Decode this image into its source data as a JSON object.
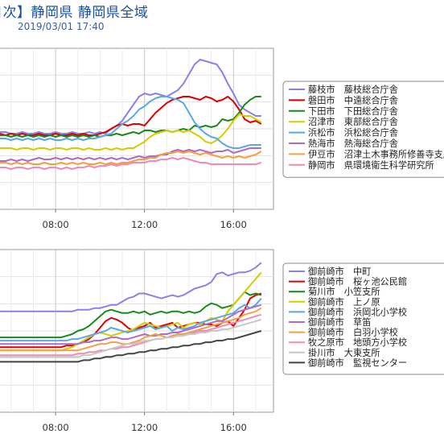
{
  "header": {
    "title": "日次】静岡県 静岡県全域",
    "timestamp": "2019/03/01 17:40"
  },
  "chart_data": [
    {
      "type": "line",
      "x_ticks": [
        "08:00",
        "12:00",
        "16:00"
      ],
      "xlim": [
        5.5,
        17.8
      ],
      "ylim": [
        0,
        1
      ],
      "grid": true,
      "legend_placement": "right",
      "x": [
        5.5,
        5.75,
        6,
        6.25,
        6.5,
        6.75,
        7,
        7.25,
        7.5,
        7.75,
        8,
        8.25,
        8.5,
        8.75,
        9,
        9.25,
        9.5,
        9.75,
        10,
        10.25,
        10.5,
        10.75,
        11,
        11.25,
        11.5,
        11.75,
        12,
        12.25,
        12.5,
        12.75,
        13,
        13.25,
        13.5,
        13.75,
        14,
        14.25,
        14.5,
        14.75,
        15,
        15.25,
        15.5,
        15.75,
        16,
        16.25,
        16.5,
        16.75,
        17,
        17.25
      ],
      "series": [
        {
          "name": "藤枝市　藤枝総合庁舎",
          "color": "#8a82e6",
          "values": [
            0.48,
            0.48,
            0.47,
            0.47,
            0.48,
            0.47,
            0.47,
            0.48,
            0.47,
            0.47,
            0.48,
            0.47,
            0.47,
            0.48,
            0.47,
            0.47,
            0.48,
            0.47,
            0.48,
            0.47,
            0.5,
            0.52,
            0.55,
            0.6,
            0.65,
            0.7,
            0.72,
            0.71,
            0.72,
            0.71,
            0.7,
            0.72,
            0.74,
            0.78,
            0.84,
            0.9,
            0.93,
            0.92,
            0.91,
            0.9,
            0.85,
            0.78,
            0.72,
            0.65,
            0.62,
            0.6,
            0.58,
            0.58
          ]
        },
        {
          "name": "磐田市　中遠総合庁舎",
          "color": "#e00000",
          "values": [
            0.47,
            0.46,
            0.47,
            0.46,
            0.47,
            0.46,
            0.46,
            0.47,
            0.46,
            0.46,
            0.47,
            0.46,
            0.46,
            0.47,
            0.46,
            0.47,
            0.46,
            0.46,
            0.47,
            0.48,
            0.5,
            0.52,
            0.53,
            0.52,
            0.53,
            0.53,
            0.52,
            0.56,
            0.6,
            0.63,
            0.66,
            0.68,
            0.69,
            0.7,
            0.7,
            0.69,
            0.68,
            0.7,
            0.69,
            0.67,
            0.68,
            0.7,
            0.67,
            0.62,
            0.56,
            0.54,
            0.55,
            0.53
          ]
        },
        {
          "name": "下田市　下田総合庁舎",
          "color": "#1a8a1a",
          "values": [
            0.46,
            0.46,
            0.45,
            0.46,
            0.45,
            0.46,
            0.45,
            0.46,
            0.45,
            0.46,
            0.45,
            0.46,
            0.45,
            0.46,
            0.45,
            0.46,
            0.45,
            0.46,
            0.45,
            0.46,
            0.46,
            0.47,
            0.46,
            0.47,
            0.48,
            0.47,
            0.49,
            0.49,
            0.48,
            0.49,
            0.49,
            0.48,
            0.49,
            0.5,
            0.49,
            0.52,
            0.51,
            0.52,
            0.51,
            0.52,
            0.56,
            0.55,
            0.56,
            0.6,
            0.65,
            0.68,
            0.7,
            0.7
          ]
        },
        {
          "name": "沼津市　東部総合庁舎",
          "color": "#d4cc00",
          "values": [
            0.38,
            0.38,
            0.38,
            0.37,
            0.38,
            0.38,
            0.37,
            0.38,
            0.38,
            0.37,
            0.38,
            0.38,
            0.37,
            0.38,
            0.38,
            0.37,
            0.38,
            0.37,
            0.37,
            0.38,
            0.37,
            0.38,
            0.37,
            0.38,
            0.38,
            0.4,
            0.42,
            0.45,
            0.47,
            0.48,
            0.49,
            0.48,
            0.49,
            0.48,
            0.49,
            0.47,
            0.45,
            0.42,
            0.41,
            0.43,
            0.46,
            0.5,
            0.55,
            0.59,
            0.58,
            0.58,
            0.56,
            0.54
          ]
        },
        {
          "name": "浜松市　浜松総合庁舎",
          "color": "#5aa8e8",
          "values": [
            0.44,
            0.44,
            0.43,
            0.44,
            0.43,
            0.44,
            0.43,
            0.44,
            0.43,
            0.44,
            0.43,
            0.43,
            0.44,
            0.43,
            0.44,
            0.43,
            0.44,
            0.44,
            0.45,
            0.46,
            0.47,
            0.5,
            0.53,
            0.55,
            0.58,
            0.62,
            0.64,
            0.67,
            0.69,
            0.7,
            0.7,
            0.69,
            0.68,
            0.66,
            0.6,
            0.54,
            0.5,
            0.47,
            0.45,
            0.44,
            0.41,
            0.39,
            0.38,
            0.38,
            0.39,
            0.4,
            0.4,
            0.4
          ]
        },
        {
          "name": "熱海市　熱海総合庁舎",
          "color": "#b06ac8",
          "values": [
            0.3,
            0.3,
            0.31,
            0.3,
            0.31,
            0.3,
            0.31,
            0.32,
            0.31,
            0.31,
            0.32,
            0.31,
            0.32,
            0.31,
            0.32,
            0.31,
            0.32,
            0.31,
            0.32,
            0.31,
            0.32,
            0.31,
            0.32,
            0.31,
            0.32,
            0.33,
            0.32,
            0.33,
            0.33,
            0.34,
            0.34,
            0.36,
            0.37,
            0.36,
            0.37,
            0.36,
            0.37,
            0.36,
            0.35,
            0.36,
            0.36,
            0.37,
            0.35,
            0.36,
            0.37,
            0.38,
            0.38,
            0.38
          ]
        },
        {
          "name": "伊豆市　沼津土木事務所修善寺支所",
          "color": "#f5a040",
          "values": [
            0.29,
            0.29,
            0.28,
            0.29,
            0.28,
            0.29,
            0.28,
            0.28,
            0.29,
            0.28,
            0.28,
            0.29,
            0.28,
            0.29,
            0.28,
            0.29,
            0.28,
            0.28,
            0.29,
            0.28,
            0.29,
            0.28,
            0.29,
            0.29,
            0.3,
            0.31,
            0.31,
            0.32,
            0.32,
            0.34,
            0.35,
            0.35,
            0.36,
            0.35,
            0.36,
            0.35,
            0.34,
            0.35,
            0.34,
            0.33,
            0.32,
            0.33,
            0.32,
            0.33,
            0.32,
            0.33,
            0.34,
            0.36
          ]
        },
        {
          "name": "静岡市　県環境衛生科学研究所",
          "color": "#f08ab8",
          "values": [
            0.26,
            0.26,
            0.25,
            0.26,
            0.26,
            0.25,
            0.26,
            0.26,
            0.25,
            0.26,
            0.26,
            0.25,
            0.26,
            0.25,
            0.26,
            0.26,
            0.27,
            0.26,
            0.27,
            0.27,
            0.28,
            0.27,
            0.28,
            0.28,
            0.29,
            0.29,
            0.29,
            0.3,
            0.3,
            0.31,
            0.31,
            0.32,
            0.31,
            0.32,
            0.31,
            0.3,
            0.29,
            0.29,
            0.28,
            0.28,
            0.28,
            0.28,
            0.28,
            0.28,
            0.28,
            0.28,
            0.28,
            0.29
          ]
        }
      ]
    },
    {
      "type": "line",
      "x_ticks": [
        "08:00",
        "12:00",
        "16:00"
      ],
      "xlim": [
        5.5,
        17.8
      ],
      "ylim": [
        0,
        1
      ],
      "grid": true,
      "legend_placement": "right",
      "x": [
        5.5,
        5.75,
        6,
        6.25,
        6.5,
        6.75,
        7,
        7.25,
        7.5,
        7.75,
        8,
        8.25,
        8.5,
        8.75,
        9,
        9.25,
        9.5,
        9.75,
        10,
        10.25,
        10.5,
        10.75,
        11,
        11.25,
        11.5,
        11.75,
        12,
        12.25,
        12.5,
        12.75,
        13,
        13.25,
        13.5,
        13.75,
        14,
        14.25,
        14.5,
        14.75,
        15,
        15.25,
        15.5,
        15.75,
        16,
        16.25,
        16.5,
        16.75,
        17,
        17.25
      ],
      "series": [
        {
          "name": "御前崎市　中町",
          "color": "#8a82e6",
          "values": [
            0.62,
            0.62,
            0.62,
            0.62,
            0.62,
            0.62,
            0.62,
            0.62,
            0.62,
            0.62,
            0.62,
            0.62,
            0.62,
            0.62,
            0.63,
            0.63,
            0.63,
            0.64,
            0.64,
            0.65,
            0.66,
            0.66,
            0.68,
            0.7,
            0.71,
            0.73,
            0.73,
            0.72,
            0.71,
            0.7,
            0.71,
            0.72,
            0.71,
            0.72,
            0.74,
            0.76,
            0.77,
            0.78,
            0.8,
            0.85,
            0.86,
            0.84,
            0.85,
            0.86,
            0.86,
            0.87,
            0.89,
            0.92
          ]
        },
        {
          "name": "御前崎市　桜ヶ池公民館",
          "color": "#e00000",
          "values": [
            0.4,
            0.4,
            0.4,
            0.4,
            0.4,
            0.4,
            0.4,
            0.4,
            0.4,
            0.4,
            0.4,
            0.4,
            0.41,
            0.41,
            0.42,
            0.43,
            0.45,
            0.48,
            0.52,
            0.56,
            0.58,
            0.57,
            0.55,
            0.52,
            0.5,
            0.52,
            0.53,
            0.55,
            0.52,
            0.53,
            0.54,
            0.55,
            0.52,
            0.53,
            0.54,
            0.55,
            0.55,
            0.54,
            0.54,
            0.53,
            0.55,
            0.56,
            0.53,
            0.58,
            0.63,
            0.7,
            0.72,
            0.73
          ]
        },
        {
          "name": "菊川市　小笠支所",
          "color": "#1a8a1a",
          "values": [
            0.46,
            0.46,
            0.46,
            0.46,
            0.46,
            0.46,
            0.46,
            0.46,
            0.46,
            0.46,
            0.46,
            0.46,
            0.47,
            0.48,
            0.5,
            0.51,
            0.53,
            0.56,
            0.59,
            0.62,
            0.63,
            0.62,
            0.61,
            0.61,
            0.62,
            0.61,
            0.62,
            0.6,
            0.61,
            0.62,
            0.61,
            0.62,
            0.62,
            0.61,
            0.62,
            0.61,
            0.62,
            0.65,
            0.67,
            0.66,
            0.64,
            0.65,
            0.66,
            0.7,
            0.74,
            0.72,
            0.73,
            0.72
          ]
        },
        {
          "name": "御前崎市　上ノ原",
          "color": "#d4cc00",
          "values": [
            0.38,
            0.38,
            0.38,
            0.38,
            0.38,
            0.38,
            0.38,
            0.38,
            0.38,
            0.38,
            0.38,
            0.38,
            0.39,
            0.4,
            0.42,
            0.44,
            0.46,
            0.48,
            0.49,
            0.48,
            0.47,
            0.48,
            0.49,
            0.5,
            0.51,
            0.53,
            0.55,
            0.54,
            0.53,
            0.52,
            0.53,
            0.54,
            0.55,
            0.52,
            0.54,
            0.55,
            0.54,
            0.56,
            0.58,
            0.57,
            0.56,
            0.62,
            0.66,
            0.7,
            0.74,
            0.78,
            0.82,
            0.86
          ]
        },
        {
          "name": "御前崎市　浜岡北小学校",
          "color": "#5aa8e8",
          "values": [
            0.44,
            0.44,
            0.44,
            0.44,
            0.44,
            0.44,
            0.44,
            0.44,
            0.44,
            0.44,
            0.44,
            0.44,
            0.44,
            0.45,
            0.45,
            0.46,
            0.47,
            0.48,
            0.49,
            0.5,
            0.52,
            0.51,
            0.5,
            0.49,
            0.5,
            0.51,
            0.52,
            0.53,
            0.51,
            0.52,
            0.53,
            0.5,
            0.52,
            0.51,
            0.52,
            0.53,
            0.55,
            0.56,
            0.57,
            0.58,
            0.59,
            0.6,
            0.61,
            0.64,
            0.66,
            0.64,
            0.66,
            0.7
          ]
        },
        {
          "name": "御前崎市　草笛",
          "color": "#b06ac8",
          "values": [
            0.42,
            0.42,
            0.42,
            0.42,
            0.42,
            0.42,
            0.42,
            0.42,
            0.42,
            0.42,
            0.42,
            0.42,
            0.42,
            0.42,
            0.42,
            0.43,
            0.43,
            0.44,
            0.44,
            0.45,
            0.46,
            0.46,
            0.45,
            0.45,
            0.46,
            0.47,
            0.48,
            0.47,
            0.47,
            0.48,
            0.48,
            0.49,
            0.49,
            0.5,
            0.51,
            0.52,
            0.53,
            0.54,
            0.55,
            0.56,
            0.56,
            0.58,
            0.6,
            0.62,
            0.63,
            0.64,
            0.65,
            0.66
          ]
        },
        {
          "name": "御前崎市　白羽小学校",
          "color": "#f5a040",
          "values": [
            0.38,
            0.38,
            0.38,
            0.38,
            0.38,
            0.38,
            0.38,
            0.38,
            0.38,
            0.38,
            0.38,
            0.38,
            0.38,
            0.38,
            0.38,
            0.39,
            0.4,
            0.41,
            0.42,
            0.42,
            0.43,
            0.43,
            0.42,
            0.42,
            0.43,
            0.44,
            0.46,
            0.47,
            0.48,
            0.47,
            0.46,
            0.47,
            0.48,
            0.48,
            0.49,
            0.5,
            0.51,
            0.52,
            0.53,
            0.54,
            0.55,
            0.56,
            0.57,
            0.58,
            0.6,
            0.61,
            0.62,
            0.64
          ]
        },
        {
          "name": "牧之原市　地頭方小学校",
          "color": "#f08ab8",
          "values": [
            0.35,
            0.35,
            0.35,
            0.35,
            0.35,
            0.35,
            0.35,
            0.35,
            0.35,
            0.35,
            0.35,
            0.35,
            0.35,
            0.35,
            0.36,
            0.36,
            0.37,
            0.37,
            0.38,
            0.38,
            0.39,
            0.39,
            0.4,
            0.4,
            0.41,
            0.42,
            0.43,
            0.44,
            0.45,
            0.45,
            0.46,
            0.46,
            0.47,
            0.47,
            0.48,
            0.49,
            0.5,
            0.5,
            0.51,
            0.52,
            0.53,
            0.54,
            0.55,
            0.56,
            0.57,
            0.58,
            0.59,
            0.6
          ]
        },
        {
          "name": "掛川市　大東支所",
          "color": "#c8c8c8",
          "values": [
            0.34,
            0.34,
            0.34,
            0.34,
            0.34,
            0.34,
            0.34,
            0.34,
            0.34,
            0.34,
            0.34,
            0.34,
            0.34,
            0.34,
            0.34,
            0.35,
            0.35,
            0.36,
            0.37,
            0.38,
            0.39,
            0.4,
            0.41,
            0.42,
            0.42,
            0.43,
            0.44,
            0.44,
            0.45,
            0.45,
            0.46,
            0.46,
            0.47,
            0.47,
            0.48,
            0.48,
            0.49,
            0.49,
            0.5,
            0.5,
            0.51,
            0.51,
            0.52,
            0.53,
            0.54,
            0.55,
            0.56,
            0.57
          ]
        },
        {
          "name": "御前崎市　監視センター",
          "color": "#444444",
          "values": [
            0.31,
            0.31,
            0.31,
            0.31,
            0.31,
            0.31,
            0.31,
            0.31,
            0.31,
            0.31,
            0.31,
            0.31,
            0.31,
            0.31,
            0.31,
            0.32,
            0.32,
            0.33,
            0.33,
            0.34,
            0.34,
            0.35,
            0.35,
            0.36,
            0.36,
            0.37,
            0.37,
            0.38,
            0.38,
            0.39,
            0.39,
            0.4,
            0.4,
            0.41,
            0.41,
            0.42,
            0.42,
            0.43,
            0.43,
            0.44,
            0.44,
            0.45,
            0.45,
            0.46,
            0.47,
            0.48,
            0.49,
            0.5
          ]
        }
      ]
    }
  ]
}
